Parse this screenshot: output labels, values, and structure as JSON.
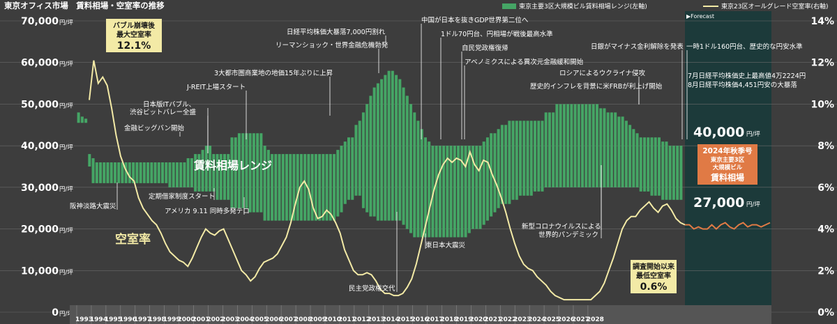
{
  "title": "東京オフィス市場　賃料相場・空室率の推移",
  "legend": {
    "rent": "東京主要3区大規模ビル賃料相場レンジ(左軸)",
    "vacancy": "東京23区オールグレード空室率(右軸)"
  },
  "forecast_label": "▶Forecast",
  "rent_range_label": "賃料相場レンジ",
  "vacancy_label": "空室率",
  "callouts": {
    "bubble": [
      "バブル崩壊後",
      "最大空室率",
      "12.1%"
    ],
    "lowest": [
      "調査開始以来",
      "最低空室率",
      "0.6%"
    ]
  },
  "forecast_box": {
    "high": "40,000",
    "low": "27,000",
    "unit": "円/坪",
    "lines": [
      "2024年秋季号",
      "東京主要3区",
      "大規模ビル",
      "賃料相場"
    ]
  },
  "colors": {
    "background": "#3d3d3d",
    "forecast_bg": "#1c3a3a",
    "rent_bar": "#45a565",
    "vacancy_line": "#f3eaa6",
    "forecast_line": "#e07a45",
    "orange_box": "#e07a45",
    "callout_bg": "#f3eaa6"
  },
  "chart_data": {
    "type": "bar",
    "title": "東京オフィス市場　賃料相場・空室率の推移",
    "x_labels": [
      "1993",
      "1994",
      "1995",
      "1996",
      "1997",
      "1998",
      "1999",
      "2000",
      "2001",
      "2002",
      "2003",
      "2004",
      "2005",
      "2006",
      "2007",
      "2008",
      "2009",
      "2010",
      "2011",
      "2012",
      "2013",
      "2014",
      "2015",
      "2016",
      "2017",
      "2018",
      "2019",
      "2020",
      "2021",
      "2022",
      "2023",
      "2024",
      "2025",
      "2026",
      "2027",
      "2028"
    ],
    "quarter_labels": [
      "1",
      "2",
      "3",
      "4"
    ],
    "y_left": {
      "min": 0,
      "max": 70000,
      "step": 10000,
      "unit": "円/坪",
      "ticks": [
        "0",
        "10,000",
        "20,000",
        "30,000",
        "40,000",
        "50,000",
        "60,000",
        "70,000"
      ]
    },
    "y_right": {
      "min": 0,
      "max": 14,
      "step": 2,
      "ticks": [
        "0%",
        "2%",
        "4%",
        "6%",
        "8%",
        "10%",
        "12%",
        "14%"
      ]
    },
    "rent_range_series": {
      "name": "東京主要3区大規模ビル賃料相場レンジ",
      "unit": "円/坪",
      "low": [
        45500,
        45500,
        45500,
        35000,
        31000,
        31000,
        31000,
        31000,
        31000,
        31000,
        31000,
        31000,
        31000,
        31000,
        31000,
        31000,
        31000,
        31000,
        31000,
        31000,
        31000,
        31000,
        31000,
        31000,
        31000,
        30000,
        30000,
        30000,
        30000,
        30000,
        30000,
        30000,
        29000,
        29000,
        29000,
        29000,
        29000,
        29000,
        27000,
        27000,
        27000,
        27000,
        25000,
        25000,
        25000,
        25000,
        25000,
        24000,
        24000,
        24000,
        24000,
        22000,
        22000,
        22000,
        22000,
        22000,
        22000,
        22000,
        22000,
        22000,
        22000,
        22000,
        22000,
        22000,
        22000,
        22000,
        22000,
        22000,
        22000,
        22000,
        22000,
        23000,
        24000,
        26000,
        27000,
        27000,
        28000,
        28000,
        25000,
        24000,
        23000,
        23000,
        22000,
        22000,
        22000,
        22000,
        22000,
        22000,
        22000,
        21000,
        20000,
        19000,
        18000,
        18000,
        18000,
        18000,
        18000,
        18000,
        18000,
        18000,
        18000,
        18000,
        18000,
        18000,
        18000,
        18000,
        18000,
        19000,
        20000,
        20000,
        20000,
        21000,
        22000,
        23000,
        24000,
        25000,
        26000,
        26000,
        26000,
        27000,
        27000,
        28000,
        28000,
        28000,
        28000,
        29000,
        29000,
        29000,
        30000,
        30000,
        30000,
        30000,
        30000,
        30000,
        30000,
        30000,
        30000,
        30000,
        30000,
        30000,
        30000,
        30000,
        30000,
        30000,
        30000,
        30000,
        30000,
        30000,
        30000,
        30000,
        30000,
        30000,
        30000,
        30000,
        29000,
        29000,
        29000,
        28000,
        28000,
        28000,
        27000,
        27000,
        27000,
        27000,
        27000,
        27000,
        27000,
        27000,
        27000,
        27000,
        27000,
        27000,
        27000,
        27000
      ],
      "high": [
        48000,
        47000,
        46500,
        38000,
        37000,
        36000,
        36000,
        36000,
        36000,
        36000,
        36000,
        36000,
        36000,
        36000,
        36000,
        36000,
        36000,
        36000,
        36000,
        36000,
        36000,
        36000,
        36000,
        36000,
        36000,
        36000,
        36000,
        36000,
        36000,
        36000,
        37000,
        37000,
        38000,
        38000,
        39000,
        40000,
        40000,
        38000,
        38000,
        38000,
        38000,
        38000,
        42000,
        42000,
        43000,
        43000,
        43000,
        43000,
        43000,
        43000,
        43000,
        40000,
        39000,
        38000,
        38000,
        38000,
        38000,
        38000,
        38000,
        38000,
        38000,
        38000,
        38000,
        38000,
        38000,
        38000,
        38000,
        38000,
        38000,
        38000,
        38000,
        39000,
        40000,
        41000,
        42000,
        42000,
        45000,
        46000,
        48000,
        50000,
        52000,
        54000,
        55000,
        56000,
        57000,
        58000,
        58000,
        57000,
        56000,
        54000,
        52000,
        50000,
        48000,
        46000,
        44000,
        42000,
        41000,
        40000,
        40000,
        40000,
        40000,
        40000,
        40000,
        40000,
        40000,
        40000,
        40000,
        40000,
        40000,
        40000,
        40000,
        41000,
        42000,
        43000,
        43000,
        44000,
        45000,
        45000,
        46000,
        46000,
        46000,
        46000,
        46000,
        46000,
        46000,
        46000,
        46000,
        46000,
        48000,
        48000,
        48000,
        50000,
        50000,
        50000,
        50000,
        50000,
        50000,
        50000,
        50000,
        50000,
        50000,
        50000,
        50000,
        49000,
        49000,
        48000,
        48000,
        48000,
        47000,
        47000,
        46000,
        45000,
        44000,
        43000,
        42000,
        42000,
        42000,
        42000,
        42000,
        42000,
        41000,
        41000,
        40000,
        40000,
        40000,
        40000,
        40000,
        40000,
        40000,
        40000,
        40000,
        40000,
        40000,
        40000
      ]
    },
    "vacancy_series": {
      "name": "東京23区オールグレード空室率",
      "unit": "%",
      "values": [
        10.2,
        12.1,
        11.0,
        11.3,
        10.9,
        9.8,
        8.5,
        7.5,
        6.9,
        6.5,
        6.3,
        5.5,
        5.0,
        4.7,
        4.4,
        4.2,
        3.8,
        3.3,
        2.9,
        2.7,
        2.5,
        2.4,
        2.2,
        2.6,
        3.1,
        3.6,
        4.0,
        3.8,
        3.7,
        3.9,
        4.0,
        3.5,
        3.0,
        2.5,
        2.0,
        1.8,
        1.5,
        1.7,
        2.1,
        2.4,
        2.5,
        2.6,
        2.8,
        3.2,
        3.6,
        4.3,
        5.2,
        6.0,
        6.3,
        5.9,
        5.0,
        4.5,
        4.6,
        4.9,
        4.7,
        4.3,
        3.8,
        3.0,
        2.5,
        2.0,
        1.8,
        1.8,
        1.9,
        1.8,
        1.5,
        1.1,
        0.9,
        0.9,
        0.8,
        0.8,
        0.9,
        1.2,
        1.6,
        2.3,
        3.2,
        4.1,
        5.0,
        5.9,
        6.6,
        7.1,
        7.4,
        7.2,
        7.4,
        7.3,
        7.0,
        7.7,
        7.1,
        6.8,
        7.3,
        7.2,
        6.6,
        6.1,
        5.5,
        4.8,
        4.0,
        3.3,
        2.7,
        2.3,
        2.1,
        2.0,
        1.7,
        1.5,
        1.3,
        1.0,
        0.8,
        0.7,
        0.6,
        0.6,
        0.6,
        0.6,
        0.6,
        0.6,
        0.6,
        0.8,
        1.0,
        1.4,
        2.0,
        2.6,
        3.3,
        4.0,
        4.4,
        4.6,
        4.6,
        4.9,
        5.1,
        5.3,
        5.0,
        4.8,
        5.1,
        5.2,
        4.9,
        4.5,
        4.3,
        4.2
      ],
      "forecast": [
        4.2,
        4.2,
        4.0,
        4.1,
        4.0,
        4.0,
        4.2,
        4.0,
        4.2,
        4.3,
        4.1,
        4.0,
        4.2,
        4.3,
        4.1,
        4.2,
        4.2,
        4.1,
        4.2,
        4.3
      ]
    },
    "annotations": [
      {
        "year": "1995",
        "text": "阪神淡路大震災"
      },
      {
        "year": "1996",
        "text": "金融ビッグバン開始"
      },
      {
        "year": "1998",
        "text": "定期借家制度スタート"
      },
      {
        "year": "1999",
        "text": "日本版ITバブル、"
      },
      {
        "year": "1999",
        "text": "渋谷ビットバレー全盛"
      },
      {
        "year": "2001",
        "text": "J-REIT上場スタート"
      },
      {
        "year": "2001",
        "text": "アメリカ 9.11 同時多発テロ"
      },
      {
        "year": "2006",
        "text": "3大都市圏商業地の地価15年ぶりに上昇"
      },
      {
        "year": "2008",
        "text": "リーマンショック・世界金融危機勃発"
      },
      {
        "year": "2008",
        "text": "日経平均株価大暴落7,000円割れ"
      },
      {
        "year": "2009",
        "text": "民主党政権交代"
      },
      {
        "year": "2011",
        "text": "東日本大震災"
      },
      {
        "year": "2010",
        "text": "中国が日本を抜きGDP世界第二位へ"
      },
      {
        "year": "2011",
        "text": "1ドル70円台、円相場が戦後最高水準"
      },
      {
        "year": "2012",
        "text": "自民党政権復帰"
      },
      {
        "year": "2013",
        "text": "アベノミクスによる異次元金融緩和開始"
      },
      {
        "year": "2020",
        "text": "新型コロナウイルスによる"
      },
      {
        "year": "2020",
        "text": "世界的パンデミック"
      },
      {
        "year": "2022",
        "text": "ロシアによるウクライナ侵攻"
      },
      {
        "year": "2022",
        "text": "歴史的インフレを背景に米FRBが利上げ開始"
      },
      {
        "year": "2024",
        "text": "日銀がマイナス金利解除を発表"
      },
      {
        "year": "2024",
        "text": "一時1ドル160円台、歴史的な円安水準"
      },
      {
        "year": "2024",
        "text": "7月日経平均株価史上最高値4万2224円"
      },
      {
        "year": "2024",
        "text": "8月日経平均株価4,451円安の大暴落"
      }
    ]
  }
}
